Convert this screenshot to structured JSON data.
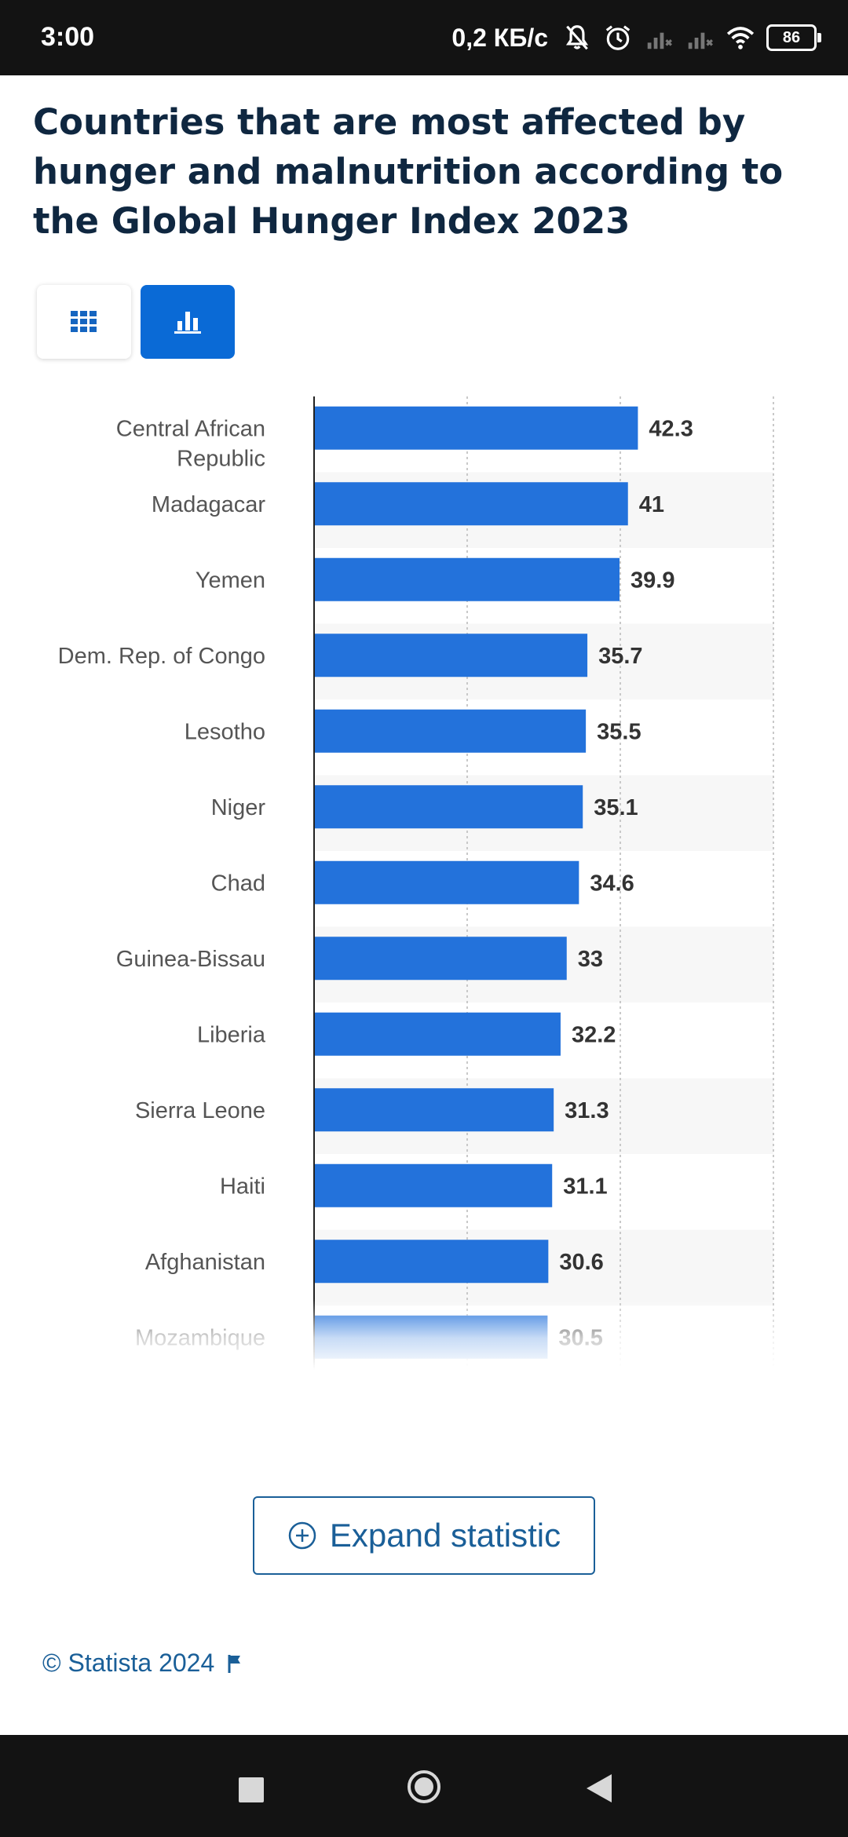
{
  "status_bar": {
    "time": "3:00",
    "net_speed": "0,2 КБ/с",
    "battery": "86",
    "icons": [
      "bell-muted-icon",
      "alarm-icon",
      "signal-icon",
      "signal-icon",
      "wifi-icon",
      "battery-icon"
    ]
  },
  "title": "Countries that are most affected by hunger and malnutrition according to the Global Hunger Index 2023",
  "view_toggle": {
    "table_icon": "grid-icon",
    "chart_icon": "bar-chart-icon",
    "active": "chart"
  },
  "chart_data": {
    "type": "bar",
    "orientation": "horizontal",
    "categories": [
      "Central African Republic",
      "Madagacar",
      "Yemen",
      "Dem. Rep. of Congo",
      "Lesotho",
      "Niger",
      "Chad",
      "Guinea-Bissau",
      "Liberia",
      "Sierra Leone",
      "Haiti",
      "Afghanistan",
      "Mozambique"
    ],
    "values": [
      42.3,
      41,
      39.9,
      35.7,
      35.5,
      35.1,
      34.6,
      33,
      32.2,
      31.3,
      31.1,
      30.6,
      30.5
    ],
    "value_labels": [
      "42.3",
      "41",
      "39.9",
      "35.7",
      "35.5",
      "35.1",
      "34.6",
      "33",
      "32.2",
      "31.3",
      "31.1",
      "30.6",
      "30.5"
    ],
    "xlim": [
      0,
      60
    ],
    "grid": true,
    "bar_color": "#2372db"
  },
  "expand_button": {
    "label": "Expand statistic",
    "icon": "plus-circle-icon"
  },
  "footer": {
    "credit": "© Statista 2024",
    "icon": "flag-icon"
  },
  "nav_bar": {
    "icons": [
      "recents-square-icon",
      "home-circle-icon",
      "back-triangle-icon"
    ]
  }
}
